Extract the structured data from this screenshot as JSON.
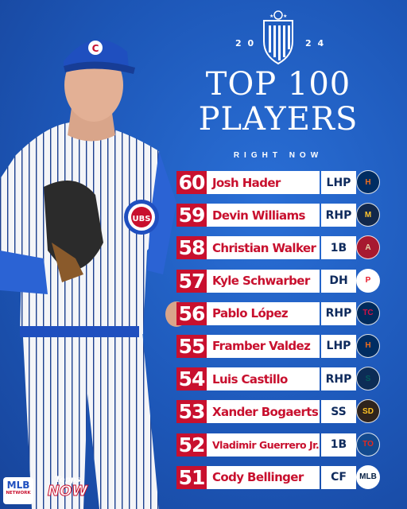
{
  "header": {
    "year_left": "2 0",
    "year_right": "2 4",
    "title_line1": "TOP 100",
    "title_line2": "PLAYERS",
    "subtitle": "RIGHT NOW"
  },
  "players": [
    {
      "rank": "60",
      "name": "Josh Hader",
      "pos": "LHP",
      "team_icon": "astros-logo-icon",
      "team_color": "#002d62",
      "accent": "#eb6e1f",
      "glyph": "H"
    },
    {
      "rank": "59",
      "name": "Devin Williams",
      "pos": "RHP",
      "team_icon": "brewers-logo-icon",
      "team_color": "#12284b",
      "accent": "#ffc52f",
      "glyph": "M"
    },
    {
      "rank": "58",
      "name": "Christian Walker",
      "pos": "1B",
      "team_icon": "diamondbacks-logo-icon",
      "team_color": "#a71930",
      "accent": "#e3d4ad",
      "glyph": "A"
    },
    {
      "rank": "57",
      "name": "Kyle Schwarber",
      "pos": "DH",
      "team_icon": "phillies-logo-icon",
      "team_color": "#ffffff",
      "accent": "#e81828",
      "glyph": "P"
    },
    {
      "rank": "56",
      "name": "Pablo López",
      "pos": "RHP",
      "team_icon": "twins-logo-icon",
      "team_color": "#002b5c",
      "accent": "#d31145",
      "glyph": "TC"
    },
    {
      "rank": "55",
      "name": "Framber Valdez",
      "pos": "LHP",
      "team_icon": "astros-logo-icon",
      "team_color": "#002d62",
      "accent": "#eb6e1f",
      "glyph": "H"
    },
    {
      "rank": "54",
      "name": "Luis Castillo",
      "pos": "RHP",
      "team_icon": "mariners-logo-icon",
      "team_color": "#0c2c56",
      "accent": "#005c5c",
      "glyph": "S"
    },
    {
      "rank": "53",
      "name": "Xander Bogaerts",
      "pos": "SS",
      "team_icon": "padres-logo-icon",
      "team_color": "#2f241d",
      "accent": "#ffc425",
      "glyph": "SD"
    },
    {
      "rank": "52",
      "name": "Vladimir Guerrero Jr.",
      "pos": "1B",
      "team_icon": "bluejays-logo-icon",
      "team_color": "#134a8e",
      "accent": "#e8291c",
      "glyph": "TO"
    },
    {
      "rank": "51",
      "name": "Cody Bellinger",
      "pos": "CF",
      "team_icon": "mlb-logo-icon",
      "team_color": "#ffffff",
      "accent": "#041e42",
      "glyph": "MLB"
    }
  ],
  "colors": {
    "background": "#1f5fc4",
    "rank_bg": "#c8102e",
    "name_text": "#c8102e",
    "pos_text": "#0e2a5c"
  },
  "footer": {
    "mlb_network": "MLB",
    "mlb_network_sub": "NETWORK",
    "topps": "Topps",
    "now": "NOW"
  }
}
